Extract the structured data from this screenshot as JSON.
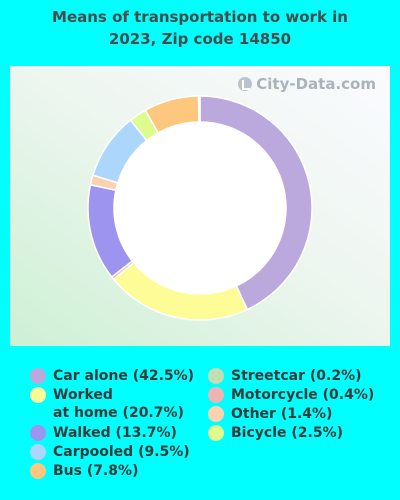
{
  "page": {
    "title_line1": "Means of transportation to work in",
    "title_line2": "2023, Zip code 14850",
    "watermark": "City-Data.com"
  },
  "chart_data": {
    "type": "pie",
    "title": "Means of transportation to work in 2023, Zip code 14850",
    "donut": true,
    "series": [
      {
        "name": "Car alone",
        "value": 42.5,
        "color": "#bba8dc",
        "label": "Car alone (42.5%)"
      },
      {
        "name": "Worked at home",
        "value": 20.7,
        "color": "#fdfc96",
        "label": "Worked\nat home (20.7%)"
      },
      {
        "name": "Motorcycle",
        "value": 0.4,
        "color": "#f0b3b3",
        "label": "Motorcycle (0.4%)"
      },
      {
        "name": "Walked",
        "value": 13.7,
        "color": "#9c94ee",
        "label": "Walked (13.7%)"
      },
      {
        "name": "Other",
        "value": 1.4,
        "color": "#fad2b0",
        "label": "Other (1.4%)"
      },
      {
        "name": "Carpooled",
        "value": 9.5,
        "color": "#acd6fb",
        "label": "Carpooled (9.5%)"
      },
      {
        "name": "Bicycle",
        "value": 2.5,
        "color": "#ddfc8d",
        "label": "Bicycle (2.5%)"
      },
      {
        "name": "Bus",
        "value": 7.8,
        "color": "#fdc77e",
        "label": "Bus (7.8%)"
      },
      {
        "name": "Streetcar",
        "value": 0.2,
        "color": "#c3deb5",
        "label": "Streetcar (0.2%)"
      }
    ],
    "legend": {
      "placement": "bottom",
      "left_column": [
        "Car alone",
        "Worked at home",
        "Walked",
        "Carpooled",
        "Bus"
      ],
      "right_column": [
        "Streetcar",
        "Motorcycle",
        "Other",
        "Bicycle"
      ]
    }
  }
}
